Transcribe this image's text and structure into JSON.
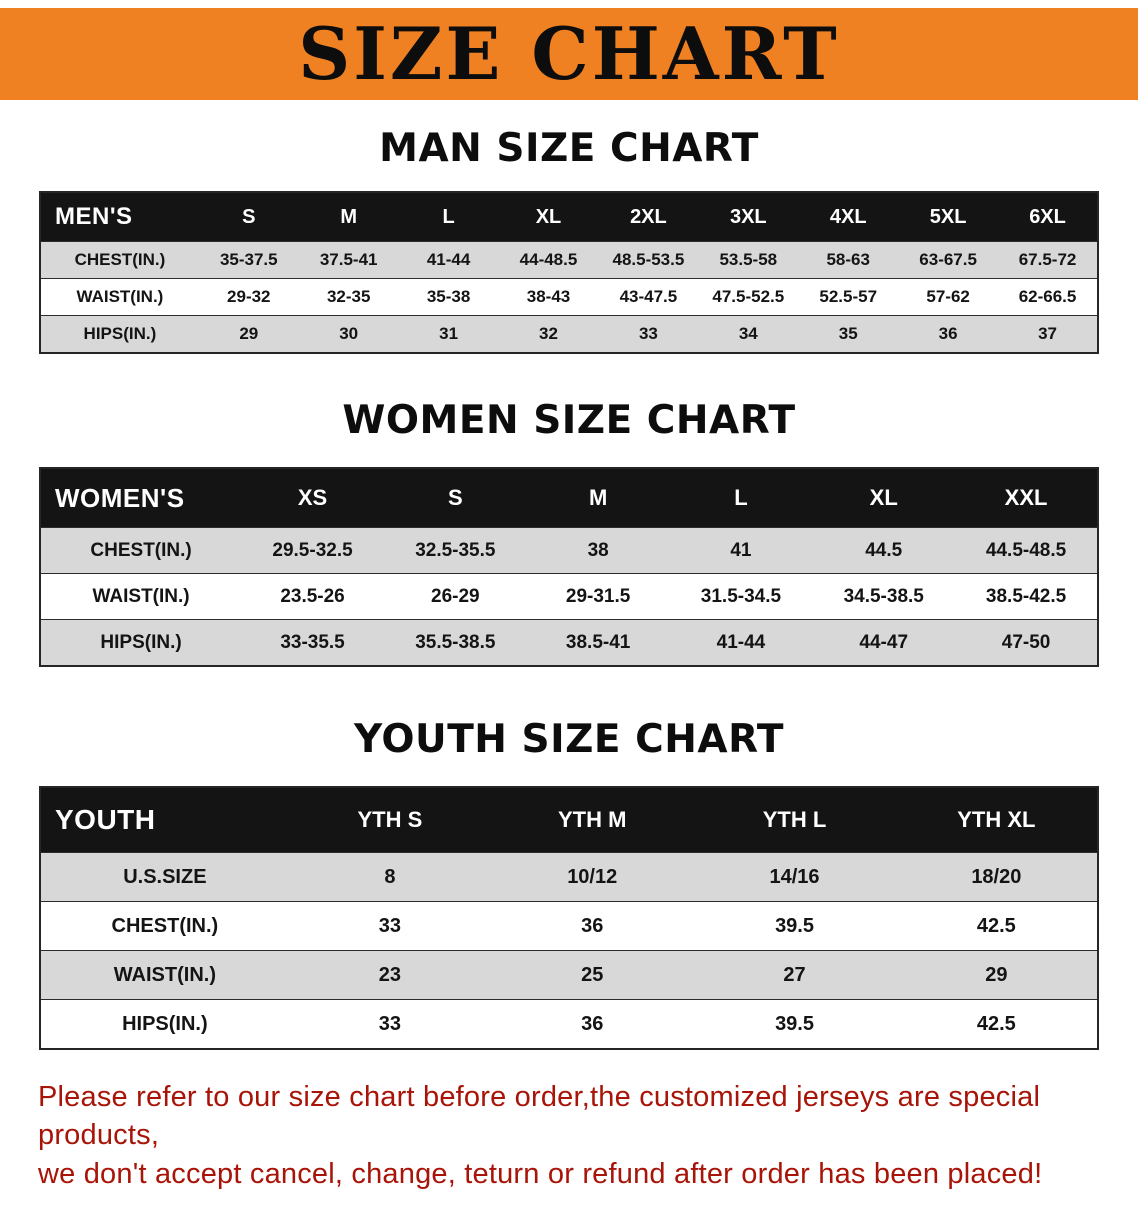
{
  "banner": {
    "title": "SIZE CHART"
  },
  "sections": {
    "men": {
      "heading": "MAN SIZE CHART",
      "table": {
        "header": [
          "MEN'S",
          "S",
          "M",
          "L",
          "XL",
          "2XL",
          "3XL",
          "4XL",
          "5XL",
          "6XL"
        ],
        "rows": [
          [
            "CHEST(IN.)",
            "35-37.5",
            "37.5-41",
            "41-44",
            "44-48.5",
            "48.5-53.5",
            "53.5-58",
            "58-63",
            "63-67.5",
            "67.5-72"
          ],
          [
            "WAIST(IN.)",
            "29-32",
            "32-35",
            "35-38",
            "38-43",
            "43-47.5",
            "47.5-52.5",
            "52.5-57",
            "57-62",
            "62-66.5"
          ],
          [
            "HIPS(IN.)",
            "29",
            "30",
            "31",
            "32",
            "33",
            "34",
            "35",
            "36",
            "37"
          ]
        ]
      }
    },
    "women": {
      "heading": "WOMEN SIZE CHART",
      "table": {
        "header": [
          "WOMEN'S",
          "XS",
          "S",
          "M",
          "L",
          "XL",
          "XXL"
        ],
        "rows": [
          [
            "CHEST(IN.)",
            "29.5-32.5",
            "32.5-35.5",
            "38",
            "41",
            "44.5",
            "44.5-48.5"
          ],
          [
            "WAIST(IN.)",
            "23.5-26",
            "26-29",
            "29-31.5",
            "31.5-34.5",
            "34.5-38.5",
            "38.5-42.5"
          ],
          [
            "HIPS(IN.)",
            "33-35.5",
            "35.5-38.5",
            "38.5-41",
            "41-44",
            "44-47",
            "47-50"
          ]
        ]
      }
    },
    "youth": {
      "heading": "YOUTH SIZE CHART",
      "table": {
        "header": [
          "YOUTH",
          "YTH S",
          "YTH M",
          "YTH L",
          "YTH XL"
        ],
        "rows": [
          [
            "U.S.SIZE",
            "8",
            "10/12",
            "14/16",
            "18/20"
          ],
          [
            "CHEST(IN.)",
            "33",
            "36",
            "39.5",
            "42.5"
          ],
          [
            "WAIST(IN.)",
            "23",
            "25",
            "27",
            "29"
          ],
          [
            "HIPS(IN.)",
            "33",
            "36",
            "39.5",
            "42.5"
          ]
        ]
      }
    }
  },
  "footnote": {
    "line1": "Please refer to our size chart before order,the customized jerseys are special products,",
    "line2": "we don't accept cancel, change, teturn or refund after order has been placed!"
  },
  "colors": {
    "banner_bg": "#ef8122",
    "table_header_bg": "#141414",
    "row_alt_bg": "#d8d8d8",
    "footnote_red": "#a81408"
  }
}
